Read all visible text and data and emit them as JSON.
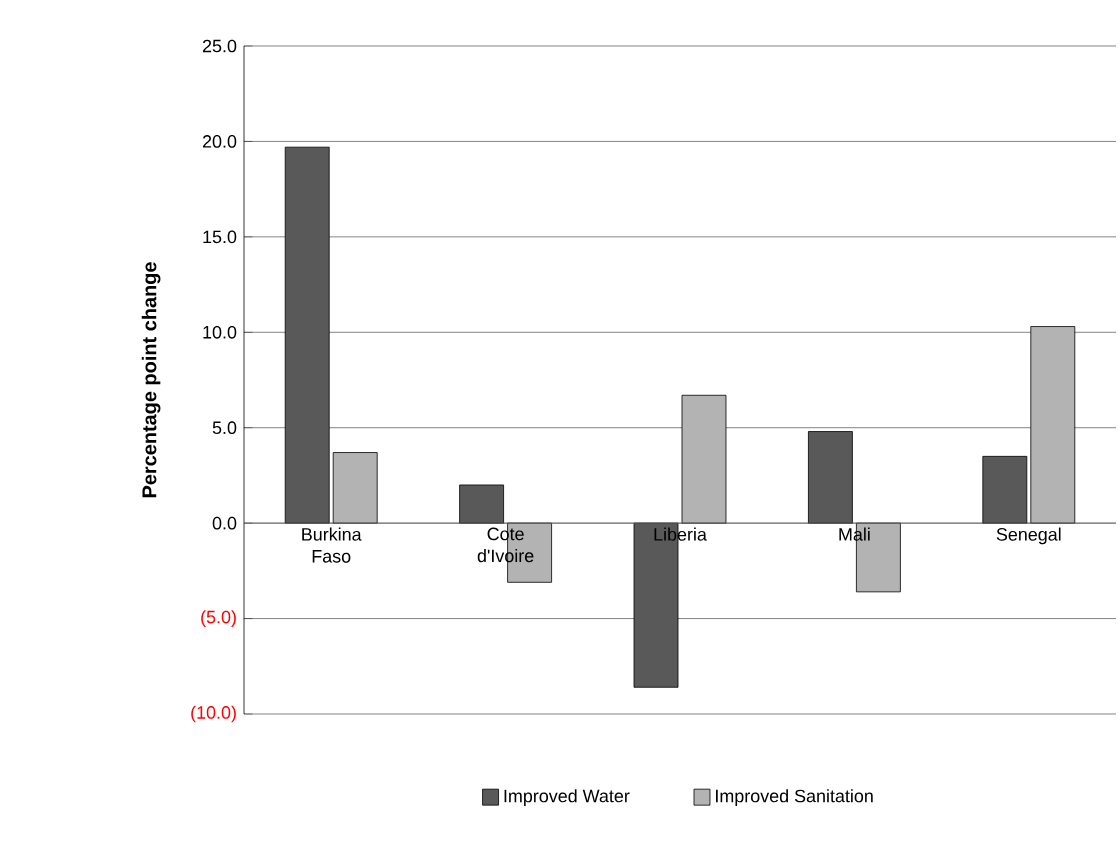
{
  "chart_data": {
    "type": "bar",
    "ylabel": "Percentage point change",
    "categories": [
      "Burkina Faso",
      "Cote d'Ivoire",
      "Liberia",
      "Mali",
      "Senegal"
    ],
    "series": [
      {
        "name": "Improved Water",
        "color": "#595959",
        "values": [
          19.7,
          2.0,
          -8.6,
          4.8,
          3.5
        ]
      },
      {
        "name": "Improved Sanitation",
        "color": "#b3b3b3",
        "values": [
          3.7,
          -3.1,
          6.7,
          -3.6,
          10.3
        ]
      }
    ],
    "ylim": [
      -10,
      25
    ],
    "yticks": [
      {
        "value": -10,
        "label": "(10.0)"
      },
      {
        "value": -5,
        "label": "(5.0)"
      },
      {
        "value": 0,
        "label": "0.0"
      },
      {
        "value": 5,
        "label": "5.0"
      },
      {
        "value": 10,
        "label": "10.0"
      },
      {
        "value": 15,
        "label": "15.0"
      },
      {
        "value": 20,
        "label": "20.0"
      },
      {
        "value": 25,
        "label": "25.0"
      }
    ],
    "grid": "y",
    "legend": "bottom"
  }
}
